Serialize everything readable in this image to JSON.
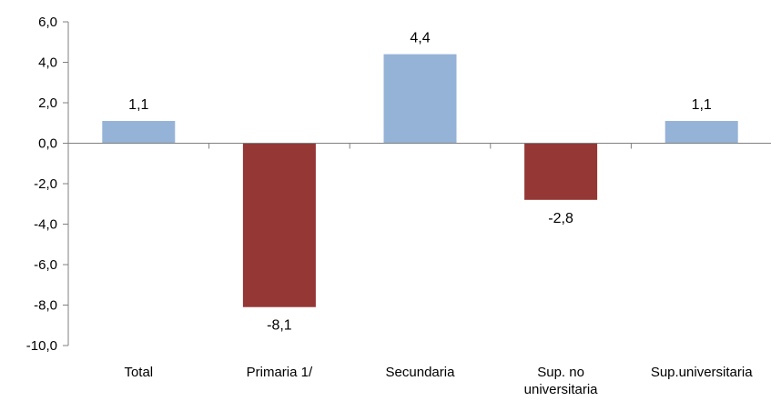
{
  "chart_data": {
    "type": "bar",
    "categories": [
      "Total",
      "Primaria 1/",
      "Secundaria",
      "Sup. no\nuniversitaria",
      "Sup.universitaria"
    ],
    "values": [
      1.1,
      -8.1,
      4.4,
      -2.8,
      1.1
    ],
    "data_labels": [
      "1,1",
      "-8,1",
      "4,4",
      "-2,8",
      "1,1"
    ],
    "yticks": [
      "-10,0",
      "-8,0",
      "-6,0",
      "-4,0",
      "-2,0",
      "0,0",
      "2,0",
      "4,0",
      "6,0"
    ],
    "ylim": [
      -10,
      6
    ],
    "grid": false,
    "colors": {
      "positive": "#95B3D7",
      "negative": "#953735",
      "axis": "#808080"
    }
  }
}
